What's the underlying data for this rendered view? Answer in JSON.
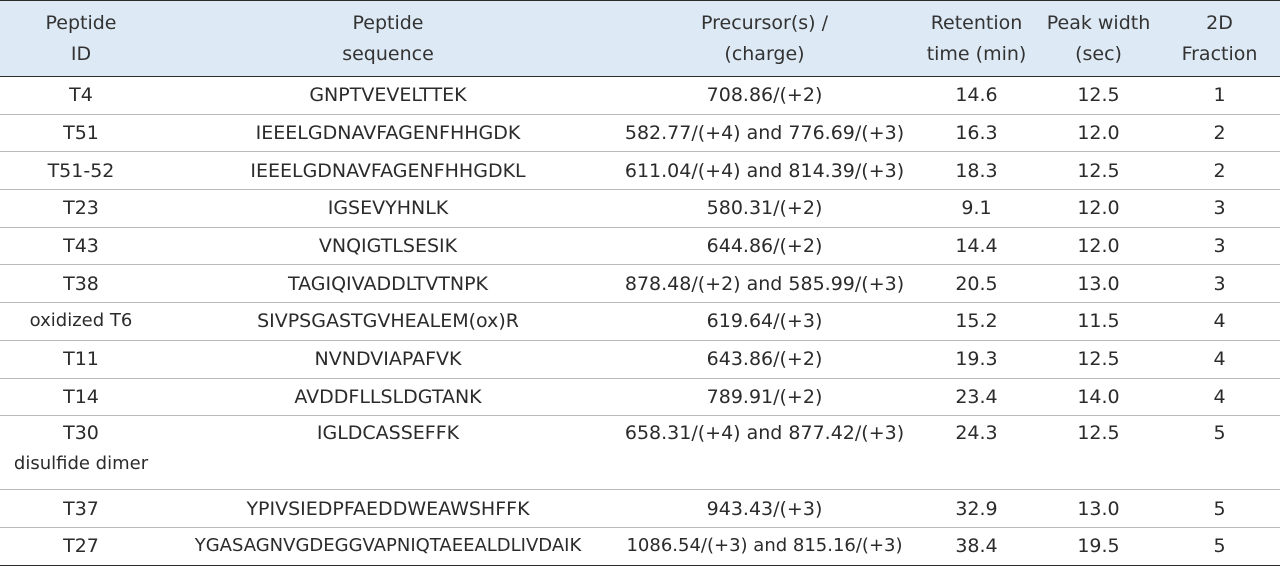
{
  "headers": [
    {
      "line1": "Peptide",
      "line2": "ID"
    },
    {
      "line1": "Peptide",
      "line2": "sequence"
    },
    {
      "line1": "Precursor(s) /",
      "line2": "(charge)"
    },
    {
      "line1": "Retention",
      "line2": "time (min)"
    },
    {
      "line1": "Peak width",
      "line2": "(sec)"
    },
    {
      "line1": "2D",
      "line2": "Fraction"
    }
  ],
  "rows": [
    {
      "id": "T4",
      "sequence": "GNPTVEVELTTEK",
      "precursor": "708.86/(+2)",
      "rt": "14.6",
      "width": "12.5",
      "fraction": "1"
    },
    {
      "id": "T51",
      "sequence": "IEEELGDNAVFAGENFHHGDK",
      "precursor": "582.77/(+4) and 776.69/(+3)",
      "rt": "16.3",
      "width": "12.0",
      "fraction": "2"
    },
    {
      "id": "T51-52",
      "sequence": "IEEELGDNAVFAGENFHHGDKL",
      "precursor": "611.04/(+4) and 814.39/(+3)",
      "rt": "18.3",
      "width": "12.5",
      "fraction": "2"
    },
    {
      "id": "T23",
      "sequence": "IGSEVYHNLK",
      "precursor": "580.31/(+2)",
      "rt": "9.1",
      "width": "12.0",
      "fraction": "3"
    },
    {
      "id": "T43",
      "sequence": "VNQIGTLSESIK",
      "precursor": "644.86/(+2)",
      "rt": "14.4",
      "width": "12.0",
      "fraction": "3"
    },
    {
      "id": "T38",
      "sequence": "TAGIQIVADDLTVTNPK",
      "precursor": "878.48/(+2) and 585.99/(+3)",
      "rt": "20.5",
      "width": "13.0",
      "fraction": "3"
    },
    {
      "id": "oxidized T6",
      "sequence": "SIVPSGASTGVHEALEM(ox)R",
      "precursor": "619.64/(+3)",
      "rt": "15.2",
      "width": "11.5",
      "fraction": "4"
    },
    {
      "id": "T11",
      "sequence": "NVNDVIAPAFVK",
      "precursor": "643.86/(+2)",
      "rt": "19.3",
      "width": "12.5",
      "fraction": "4"
    },
    {
      "id": "T14",
      "sequence": "AVDDFLLSLDGTANK",
      "precursor": "789.91/(+2)",
      "rt": "23.4",
      "width": "14.0",
      "fraction": "4"
    },
    {
      "id": "T30",
      "id_sub": "disulfide dimer",
      "sequence": "IGLDCASSEFFK",
      "precursor": "658.31/(+4) and 877.42/(+3)",
      "rt": "24.3",
      "width": "12.5",
      "fraction": "5"
    },
    {
      "id": "T37",
      "sequence": "YPIVSIEDPFAEDDWEAWSHFFK",
      "precursor": "943.43/(+3)",
      "rt": "32.9",
      "width": "13.0",
      "fraction": "5"
    },
    {
      "id": "T27",
      "sequence": "YGASAGNVGDEGGVAPNIQTAEEALDLIVDAIK",
      "precursor": "1086.54/(+3) and 815.16/(+3)",
      "rt": "38.4",
      "width": "19.5",
      "fraction": "5"
    }
  ]
}
